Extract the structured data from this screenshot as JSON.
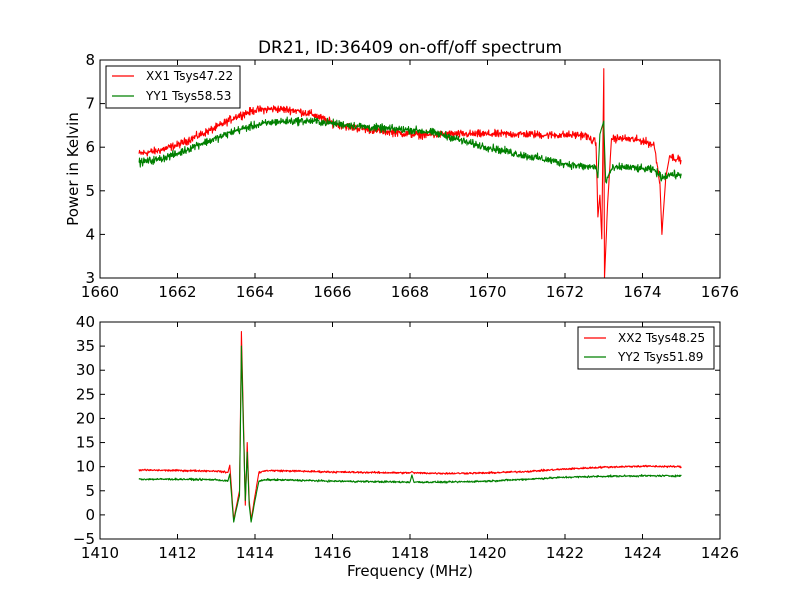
{
  "chart_data": [
    {
      "type": "line",
      "title": "DR21, ID:36409 on-off/off spectrum",
      "xlabel": "",
      "ylabel": "Power in Kelvin",
      "xlim": [
        1660,
        1676
      ],
      "ylim": [
        3,
        8
      ],
      "xticks": [
        "1660",
        "1662",
        "1664",
        "1666",
        "1668",
        "1670",
        "1672",
        "1674",
        "1676"
      ],
      "yticks": [
        "3",
        "4",
        "5",
        "6",
        "7",
        "8"
      ],
      "legend_position": "top-left",
      "grid": false,
      "series": [
        {
          "name": "XX1 Tsys47.22",
          "color": "#ff0000",
          "points": [
            [
              1661.0,
              5.85
            ],
            [
              1661.5,
              5.92
            ],
            [
              1662.0,
              6.05
            ],
            [
              1662.5,
              6.25
            ],
            [
              1663.0,
              6.45
            ],
            [
              1663.5,
              6.7
            ],
            [
              1664.0,
              6.85
            ],
            [
              1664.5,
              6.88
            ],
            [
              1665.0,
              6.85
            ],
            [
              1665.5,
              6.75
            ],
            [
              1666.0,
              6.55
            ],
            [
              1666.5,
              6.45
            ],
            [
              1667.0,
              6.4
            ],
            [
              1667.5,
              6.35
            ],
            [
              1668.0,
              6.3
            ],
            [
              1668.5,
              6.28
            ],
            [
              1669.0,
              6.3
            ],
            [
              1669.5,
              6.3
            ],
            [
              1670.0,
              6.3
            ],
            [
              1670.5,
              6.3
            ],
            [
              1671.0,
              6.3
            ],
            [
              1671.5,
              6.28
            ],
            [
              1672.0,
              6.28
            ],
            [
              1672.5,
              6.28
            ],
            [
              1672.8,
              6.1
            ],
            [
              1672.85,
              4.4
            ],
            [
              1672.9,
              4.9
            ],
            [
              1672.95,
              3.9
            ],
            [
              1673.0,
              7.8
            ],
            [
              1673.02,
              3.0
            ],
            [
              1673.1,
              4.7
            ],
            [
              1673.2,
              6.2
            ],
            [
              1673.5,
              6.2
            ],
            [
              1674.0,
              6.15
            ],
            [
              1674.3,
              6.05
            ],
            [
              1674.45,
              5.2
            ],
            [
              1674.5,
              4.0
            ],
            [
              1674.6,
              5.3
            ],
            [
              1674.7,
              5.8
            ],
            [
              1675.0,
              5.7
            ]
          ]
        },
        {
          "name": "YY1 Tsys58.53",
          "color": "#008000",
          "points": [
            [
              1661.0,
              5.65
            ],
            [
              1661.5,
              5.72
            ],
            [
              1662.0,
              5.85
            ],
            [
              1662.5,
              6.05
            ],
            [
              1663.0,
              6.2
            ],
            [
              1663.5,
              6.38
            ],
            [
              1664.0,
              6.5
            ],
            [
              1664.5,
              6.58
            ],
            [
              1665.0,
              6.6
            ],
            [
              1665.5,
              6.6
            ],
            [
              1666.0,
              6.55
            ],
            [
              1666.5,
              6.5
            ],
            [
              1667.0,
              6.45
            ],
            [
              1667.5,
              6.42
            ],
            [
              1668.0,
              6.4
            ],
            [
              1668.5,
              6.35
            ],
            [
              1669.0,
              6.25
            ],
            [
              1669.5,
              6.1
            ],
            [
              1670.0,
              6.0
            ],
            [
              1670.5,
              5.9
            ],
            [
              1671.0,
              5.8
            ],
            [
              1671.5,
              5.72
            ],
            [
              1672.0,
              5.62
            ],
            [
              1672.5,
              5.55
            ],
            [
              1672.8,
              5.55
            ],
            [
              1672.85,
              5.3
            ],
            [
              1672.9,
              6.3
            ],
            [
              1673.0,
              6.6
            ],
            [
              1673.05,
              5.2
            ],
            [
              1673.2,
              5.5
            ],
            [
              1673.5,
              5.55
            ],
            [
              1674.0,
              5.5
            ],
            [
              1674.3,
              5.48
            ],
            [
              1674.5,
              5.3
            ],
            [
              1674.7,
              5.38
            ],
            [
              1675.0,
              5.35
            ]
          ]
        }
      ]
    },
    {
      "type": "line",
      "title": "",
      "xlabel": "Frequency (MHz)",
      "ylabel": "",
      "xlim": [
        1410,
        1426
      ],
      "ylim": [
        -5,
        40
      ],
      "xticks": [
        "1410",
        "1412",
        "1414",
        "1416",
        "1418",
        "1420",
        "1422",
        "1424",
        "1426"
      ],
      "yticks": [
        "−5",
        "0",
        "5",
        "10",
        "15",
        "20",
        "25",
        "30",
        "35",
        "40"
      ],
      "legend_position": "top-right",
      "grid": false,
      "series": [
        {
          "name": "XX2 Tsys48.25",
          "color": "#ff0000",
          "points": [
            [
              1411.0,
              9.3
            ],
            [
              1412.0,
              9.2
            ],
            [
              1413.0,
              9.1
            ],
            [
              1413.3,
              8.8
            ],
            [
              1413.35,
              10.3
            ],
            [
              1413.45,
              -1.0
            ],
            [
              1413.5,
              1.0
            ],
            [
              1413.6,
              5.0
            ],
            [
              1413.65,
              38.0
            ],
            [
              1413.7,
              20.0
            ],
            [
              1413.75,
              2.0
            ],
            [
              1413.8,
              15.0
            ],
            [
              1413.85,
              3.0
            ],
            [
              1413.9,
              -1.0
            ],
            [
              1414.0,
              4.0
            ],
            [
              1414.1,
              8.8
            ],
            [
              1414.3,
              9.2
            ],
            [
              1415.0,
              9.1
            ],
            [
              1416.0,
              8.9
            ],
            [
              1417.0,
              8.8
            ],
            [
              1418.0,
              8.7
            ],
            [
              1418.05,
              9.0
            ],
            [
              1418.1,
              8.7
            ],
            [
              1419.0,
              8.6
            ],
            [
              1420.0,
              8.7
            ],
            [
              1421.0,
              9.0
            ],
            [
              1422.0,
              9.5
            ],
            [
              1423.0,
              9.9
            ],
            [
              1424.0,
              10.1
            ],
            [
              1425.0,
              10.0
            ]
          ]
        },
        {
          "name": "YY2 Tsys51.89",
          "color": "#008000",
          "points": [
            [
              1411.0,
              7.4
            ],
            [
              1412.0,
              7.4
            ],
            [
              1413.0,
              7.3
            ],
            [
              1413.3,
              7.0
            ],
            [
              1413.35,
              8.5
            ],
            [
              1413.45,
              -1.5
            ],
            [
              1413.5,
              0.5
            ],
            [
              1413.6,
              4.0
            ],
            [
              1413.65,
              35.0
            ],
            [
              1413.7,
              18.0
            ],
            [
              1413.75,
              3.0
            ],
            [
              1413.8,
              13.0
            ],
            [
              1413.85,
              2.0
            ],
            [
              1413.9,
              -1.5
            ],
            [
              1414.0,
              3.0
            ],
            [
              1414.1,
              7.0
            ],
            [
              1414.3,
              7.3
            ],
            [
              1415.0,
              7.2
            ],
            [
              1416.0,
              7.0
            ],
            [
              1417.0,
              6.9
            ],
            [
              1418.0,
              6.8
            ],
            [
              1418.05,
              8.3
            ],
            [
              1418.1,
              6.8
            ],
            [
              1419.0,
              6.8
            ],
            [
              1420.0,
              7.0
            ],
            [
              1421.0,
              7.4
            ],
            [
              1422.0,
              7.8
            ],
            [
              1423.0,
              8.0
            ],
            [
              1424.0,
              8.1
            ],
            [
              1425.0,
              8.1
            ]
          ]
        }
      ]
    }
  ]
}
